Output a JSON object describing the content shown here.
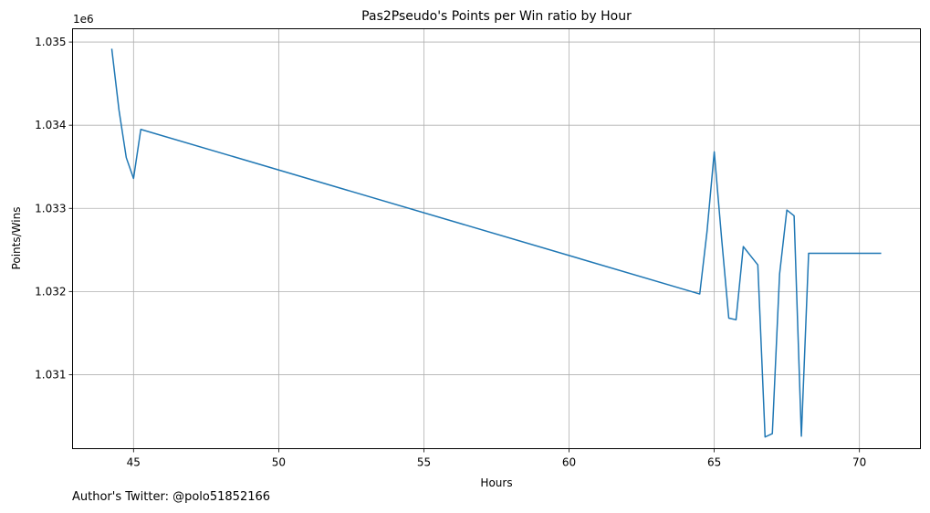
{
  "chart_data": {
    "type": "line",
    "title": "Pas2Pseudo's Points per Win ratio by Hour",
    "xlabel": "Hours",
    "ylabel": "Points/Wins",
    "offset_label": "1e6",
    "xlim": [
      42.9,
      72.1
    ],
    "ylim": [
      1.03011,
      1.03516
    ],
    "x_ticks": [
      45,
      50,
      55,
      60,
      65,
      70
    ],
    "x_tick_labels": [
      "45",
      "50",
      "55",
      "60",
      "65",
      "70"
    ],
    "y_ticks": [
      1.031,
      1.032,
      1.033,
      1.034,
      1.035
    ],
    "y_tick_labels": [
      "1.031",
      "1.032",
      "1.033",
      "1.034",
      "1.035"
    ],
    "grid": true,
    "color": "#1f77b4",
    "series": [
      {
        "x": [
          44.25,
          44.5,
          44.75,
          45.0,
          45.25,
          64.5,
          64.75,
          65.0,
          65.25,
          65.5,
          65.75,
          66.0,
          66.25,
          66.5,
          66.75,
          67.0,
          67.25,
          67.5,
          67.75,
          68.0,
          68.25,
          68.5,
          68.75,
          69.0,
          69.25,
          69.5,
          69.75,
          70.0,
          70.25,
          70.5,
          70.75
        ],
        "y": [
          1.03492,
          1.03418,
          1.03361,
          1.03336,
          1.03395,
          1.03197,
          1.03272,
          1.03368,
          1.03265,
          1.03168,
          1.03166,
          1.03254,
          1.03243,
          1.03232,
          1.03025,
          1.03029,
          1.03221,
          1.03298,
          1.03291,
          1.03026,
          1.03246,
          1.03246,
          1.03246,
          1.03246,
          1.03246,
          1.03246,
          1.03246,
          1.03246,
          1.03246,
          1.03246,
          1.03246
        ]
      }
    ]
  },
  "footer": {
    "text": "Author's Twitter: @polo51852166"
  }
}
